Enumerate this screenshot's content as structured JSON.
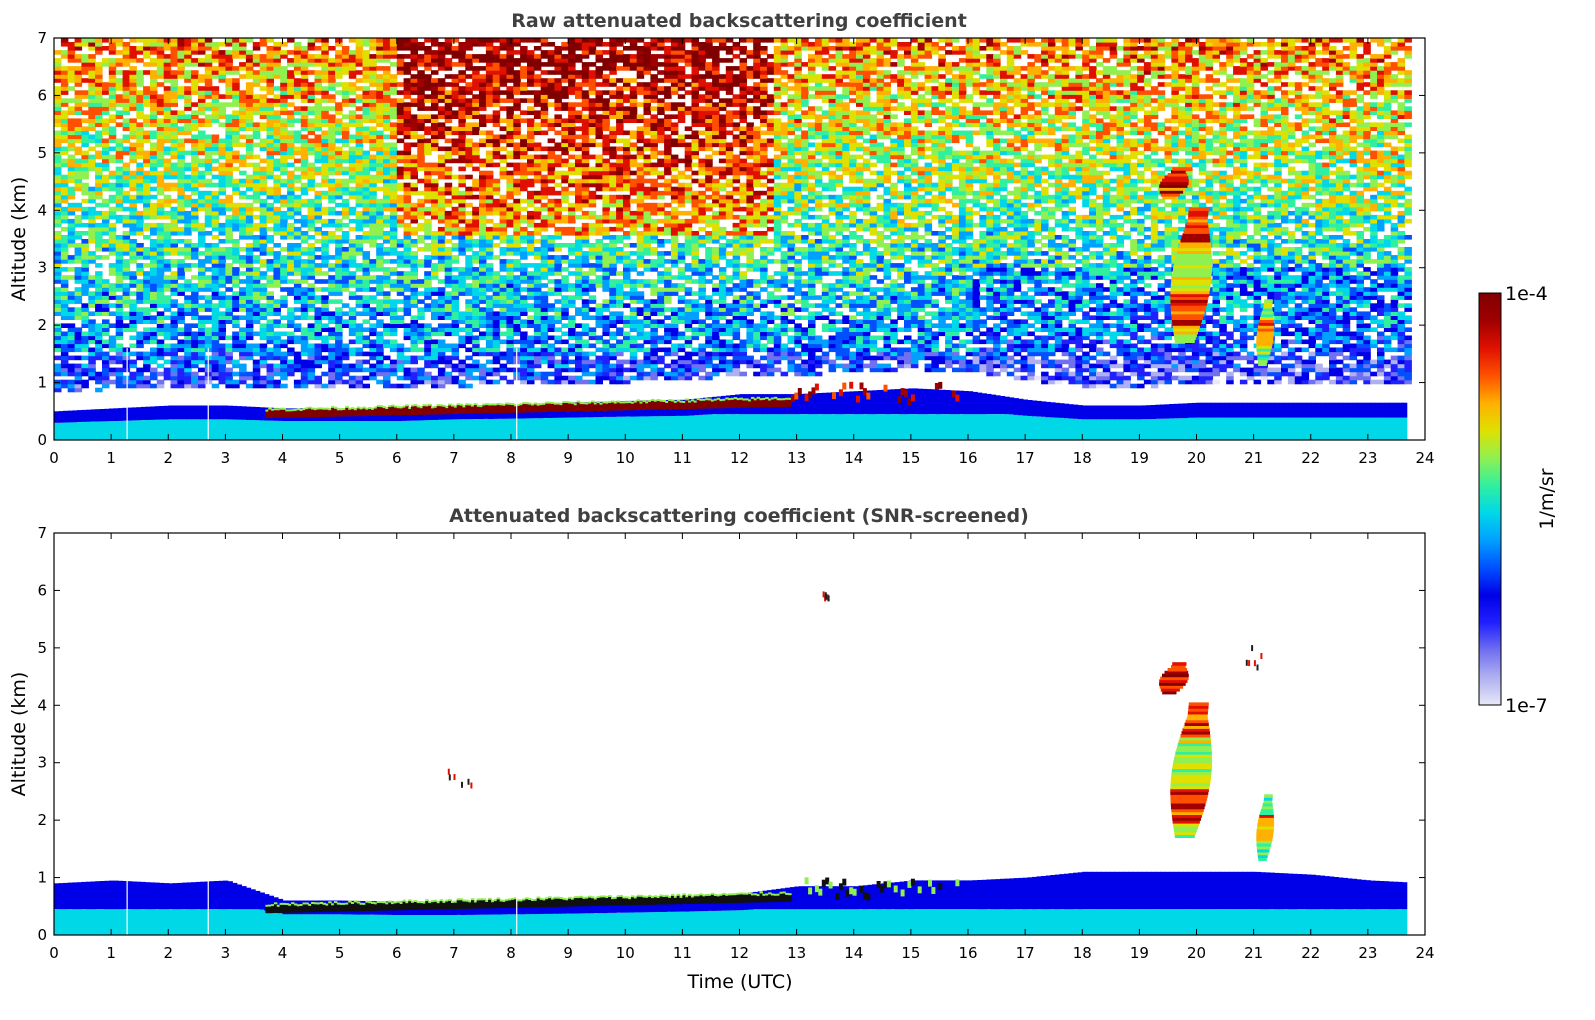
{
  "chart_data": [
    {
      "type": "heatmap",
      "title": "Raw attenuated backscattering coefficient",
      "xlabel": "",
      "ylabel": "Altitude (km)",
      "xlim": [
        0,
        24
      ],
      "ylim": [
        0,
        7
      ],
      "xticks": [
        "0",
        "1",
        "2",
        "3",
        "4",
        "5",
        "6",
        "7",
        "8",
        "9",
        "10",
        "11",
        "12",
        "13",
        "14",
        "15",
        "16",
        "17",
        "18",
        "19",
        "20",
        "21",
        "22",
        "23",
        "24"
      ],
      "yticks": [
        "0",
        "1",
        "2",
        "3",
        "4",
        "5",
        "6",
        "7"
      ],
      "data_end_hour": 23.65,
      "noise_level": "high",
      "features": [
        {
          "name": "boundary-layer",
          "t_start": 0,
          "t_end": 23.65,
          "top_km": [
            0.5,
            0.55,
            0.6,
            0.6,
            0.55,
            0.55,
            0.55,
            0.6,
            0.62,
            0.65,
            0.68,
            0.7,
            0.8,
            0.8,
            0.85,
            0.9,
            0.85,
            0.7,
            0.6,
            0.6,
            0.65,
            0.65,
            0.65,
            0.65,
            0.65
          ]
        },
        {
          "name": "stratocumulus-layer",
          "t_start": 3.7,
          "t_end": 12.9,
          "alt_start_km": 0.42,
          "alt_end_km": 0.62
        },
        {
          "name": "broken-cloud-tops",
          "t_start": 12.9,
          "t_end": 15.9,
          "alt_km": 0.75
        },
        {
          "name": "cloud-19.6h",
          "t_start": 19.35,
          "t_end": 19.85,
          "alt_bottom_km": 4.2,
          "alt_top_km": 4.7
        },
        {
          "name": "precip-shaft-20h",
          "t_start": 19.55,
          "t_end": 20.25,
          "alt_bottom_km": 1.7,
          "alt_top_km": 4.0
        },
        {
          "name": "shaft-21.2h",
          "t_start": 21.05,
          "t_end": 21.35,
          "alt_bottom_km": 1.3,
          "alt_top_km": 2.4
        }
      ]
    },
    {
      "type": "heatmap",
      "title": "Attenuated backscattering coefficient (SNR-screened)",
      "xlabel": "Time (UTC)",
      "ylabel": "Altitude (km)",
      "xlim": [
        0,
        24
      ],
      "ylim": [
        0,
        7
      ],
      "xticks": [
        "0",
        "1",
        "2",
        "3",
        "4",
        "5",
        "6",
        "7",
        "8",
        "9",
        "10",
        "11",
        "12",
        "13",
        "14",
        "15",
        "16",
        "17",
        "18",
        "19",
        "20",
        "21",
        "22",
        "23",
        "24"
      ],
      "yticks": [
        "0",
        "1",
        "2",
        "3",
        "4",
        "5",
        "6",
        "7"
      ],
      "data_end_hour": 23.65,
      "noise_level": "screened",
      "features": [
        {
          "name": "boundary-layer",
          "t_start": 0,
          "t_end": 23.65,
          "top_km": [
            0.9,
            0.95,
            0.9,
            0.95,
            0.6,
            0.6,
            0.58,
            0.58,
            0.6,
            0.62,
            0.65,
            0.68,
            0.72,
            0.85,
            0.85,
            0.95,
            0.95,
            1.0,
            1.1,
            1.1,
            1.1,
            1.1,
            1.05,
            0.95,
            0.9
          ]
        },
        {
          "name": "stratocumulus-layer",
          "t_start": 3.7,
          "t_end": 12.9,
          "alt_start_km": 0.42,
          "alt_end_km": 0.62
        },
        {
          "name": "broken-cloud-tops",
          "t_start": 12.9,
          "t_end": 15.9,
          "alt_km": 0.75
        },
        {
          "name": "cloud-19.6h",
          "t_start": 19.35,
          "t_end": 19.85,
          "alt_bottom_km": 4.2,
          "alt_top_km": 4.7
        },
        {
          "name": "precip-shaft-20h",
          "t_start": 19.55,
          "t_end": 20.25,
          "alt_bottom_km": 1.7,
          "alt_top_km": 4.0
        },
        {
          "name": "shaft-21.2h",
          "t_start": 21.05,
          "t_end": 21.35,
          "alt_bottom_km": 1.3,
          "alt_top_km": 2.4
        },
        {
          "name": "speck-6.9h",
          "t_start": 6.85,
          "t_end": 7.3,
          "alt_bottom_km": 2.55,
          "alt_top_km": 2.9
        },
        {
          "name": "speck-13.5h",
          "t_start": 13.45,
          "t_end": 13.55,
          "alt_bottom_km": 5.9,
          "alt_top_km": 6.0
        },
        {
          "name": "speck-20.9h",
          "t_start": 20.75,
          "t_end": 21.15,
          "alt_bottom_km": 4.45,
          "alt_top_km": 5.15
        }
      ]
    }
  ],
  "colorbar": {
    "label": "1/m/sr",
    "max_label": "1e-4",
    "min_label": "1e-7",
    "stops": [
      "#e8e8f8",
      "#b0b0f0",
      "#7070f0",
      "#2020ff",
      "#0000e8",
      "#0050ff",
      "#00a0ff",
      "#00d8e8",
      "#30f0a0",
      "#90f050",
      "#e0e000",
      "#ffb000",
      "#ff5000",
      "#e01000",
      "#a00000",
      "#800000"
    ]
  },
  "colors": {
    "axis": "#000000",
    "title": "#404040",
    "background": "#ffffff"
  }
}
